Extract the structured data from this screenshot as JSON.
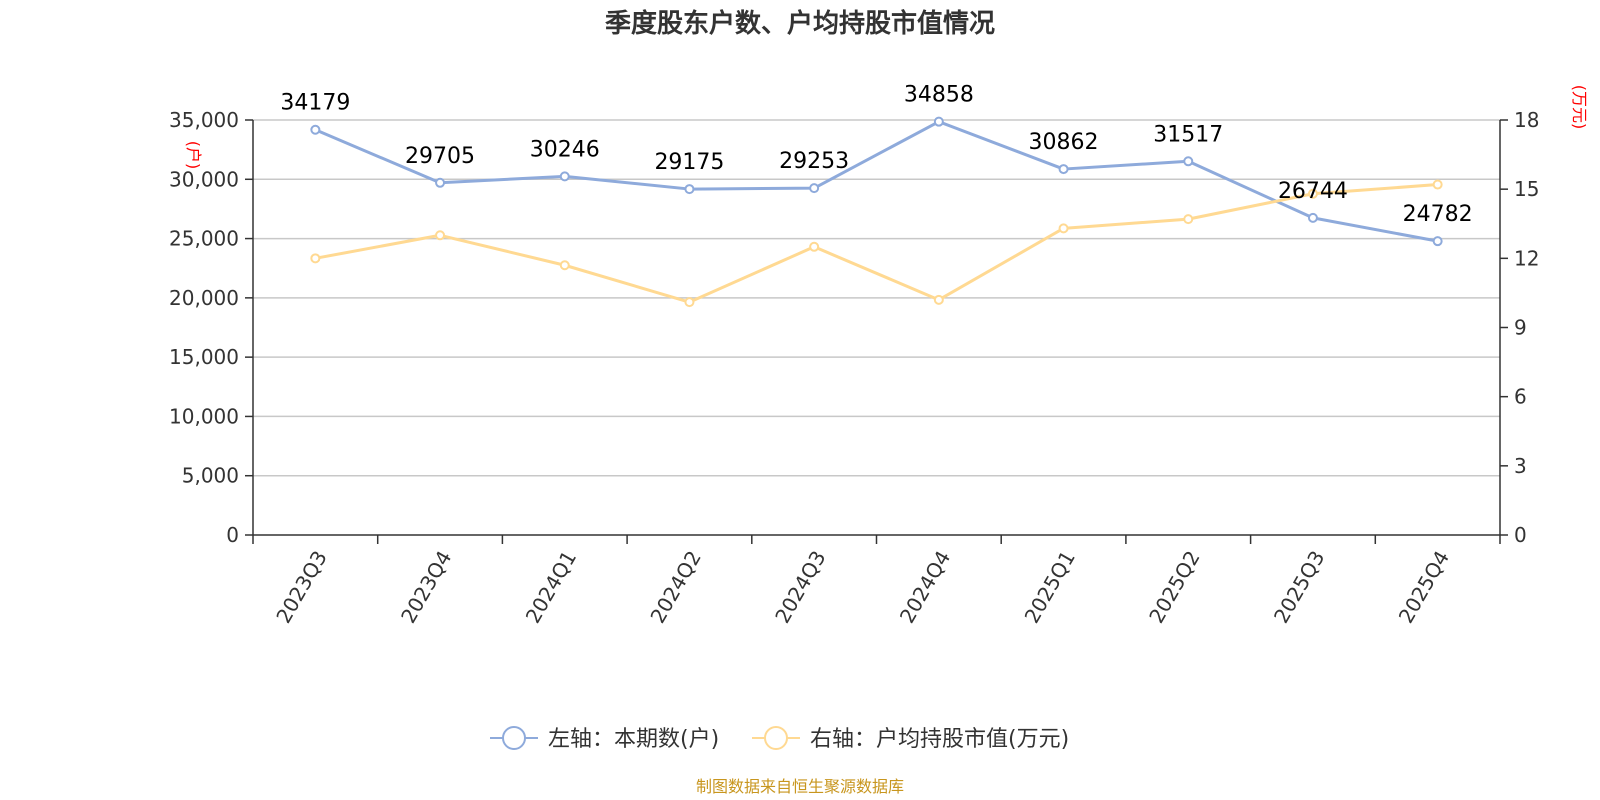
{
  "chart_data": {
    "type": "line",
    "title": "季度股东户数、户均持股市值情况",
    "categories": [
      "2023Q3",
      "2023Q4",
      "2024Q1",
      "2024Q2",
      "2024Q3",
      "2024Q4",
      "2025Q1",
      "2025Q2",
      "2025Q3",
      "2025Q4"
    ],
    "left_axis": {
      "unit": "(户)",
      "ylim": [
        0,
        35000
      ],
      "ticks": [
        0,
        5000,
        10000,
        15000,
        20000,
        25000,
        30000,
        35000
      ],
      "tick_labels": [
        "0",
        "5,000",
        "10,000",
        "15,000",
        "20,000",
        "25,000",
        "30,000",
        "35,000"
      ]
    },
    "right_axis": {
      "unit": "(万元)",
      "ylim": [
        0,
        18
      ],
      "ticks": [
        0,
        3,
        6,
        9,
        12,
        15,
        18
      ],
      "tick_labels": [
        "0",
        "3",
        "6",
        "9",
        "12",
        "15",
        "18"
      ]
    },
    "series": [
      {
        "name": "左轴：本期数(户)",
        "axis": "left",
        "color": "#8eaadb",
        "values": [
          34179,
          29705,
          30246,
          29175,
          29253,
          34858,
          30862,
          31517,
          26744,
          24782
        ],
        "show_labels": true
      },
      {
        "name": "右轴：户均持股市值(万元)",
        "axis": "right",
        "color": "#ffd992",
        "values": [
          12.0,
          13.0,
          11.7,
          10.1,
          12.5,
          10.2,
          13.3,
          13.7,
          14.8,
          15.2
        ],
        "show_labels": false
      }
    ],
    "grid": true,
    "legend_position": "bottom"
  },
  "footer": {
    "source": "制图数据来自恒生聚源数据库"
  }
}
